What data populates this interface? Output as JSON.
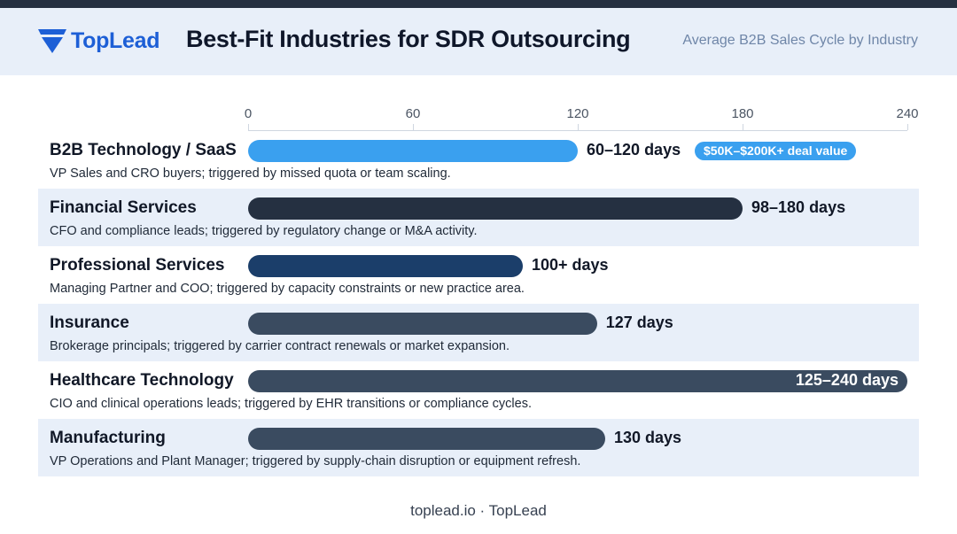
{
  "header": {
    "logo_text": "TopLead",
    "title": "Best-Fit Industries for SDR Outsourcing",
    "subtitle": "Average B2B Sales Cycle by Industry"
  },
  "colors": {
    "header_bg": "#e8eff9",
    "brand_blue": "#1d5fd6",
    "saas_bar": "#3aa0ef",
    "dark_bar": "#253041",
    "navy_bar": "#1b3e6a",
    "slate_bar": "#3a4b60"
  },
  "chart_data": {
    "type": "bar",
    "orientation": "horizontal",
    "title": "Best-Fit Industries for SDR Outsourcing",
    "subtitle": "Average B2B Sales Cycle by Industry",
    "xlim": [
      0,
      240
    ],
    "xticks": [
      "0",
      "60",
      "120",
      "180",
      "240"
    ],
    "xtick_values": [
      0,
      60,
      120,
      180,
      240
    ],
    "grid": false,
    "categories": [
      "B2B Technology / SaaS",
      "Financial Services",
      "Professional Services",
      "Insurance",
      "Healthcare Technology",
      "Manufacturing"
    ],
    "values": [
      120,
      180,
      100,
      127,
      240,
      130
    ],
    "rows": [
      {
        "name": "B2B Technology / SaaS",
        "description": "VP Sales and CRO buyers; triggered by missed quota or team scaling.",
        "value": 120,
        "label": "60–120 days",
        "color": "#3aa0ef",
        "badge": "$50K–$200K+ deal value"
      },
      {
        "name": "Financial Services",
        "description": "CFO and compliance leads; triggered by regulatory change or M&A activity.",
        "value": 180,
        "label": "98–180 days",
        "color": "#253041",
        "badge": ""
      },
      {
        "name": "Professional Services",
        "description": "Managing Partner and COO; triggered by capacity constraints or new practice area.",
        "value": 100,
        "label": "100+ days",
        "color": "#1b3e6a",
        "badge": ""
      },
      {
        "name": "Insurance",
        "description": "Brokerage principals; triggered by carrier contract renewals or market expansion.",
        "value": 127,
        "label": "127 days",
        "color": "#3a4b60",
        "badge": ""
      },
      {
        "name": "Healthcare Technology",
        "description": "CIO and clinical operations leads; triggered by EHR transitions or compliance cycles.",
        "value": 240,
        "label": "125–240 days",
        "color": "#3a4b60",
        "badge": ""
      },
      {
        "name": "Manufacturing",
        "description": "VP Operations and Plant Manager; triggered by supply-chain disruption or equipment refresh.",
        "value": 130,
        "label": "130 days",
        "color": "#3a4b60",
        "badge": ""
      }
    ]
  },
  "footer": {
    "text": "toplead.io · TopLead"
  }
}
